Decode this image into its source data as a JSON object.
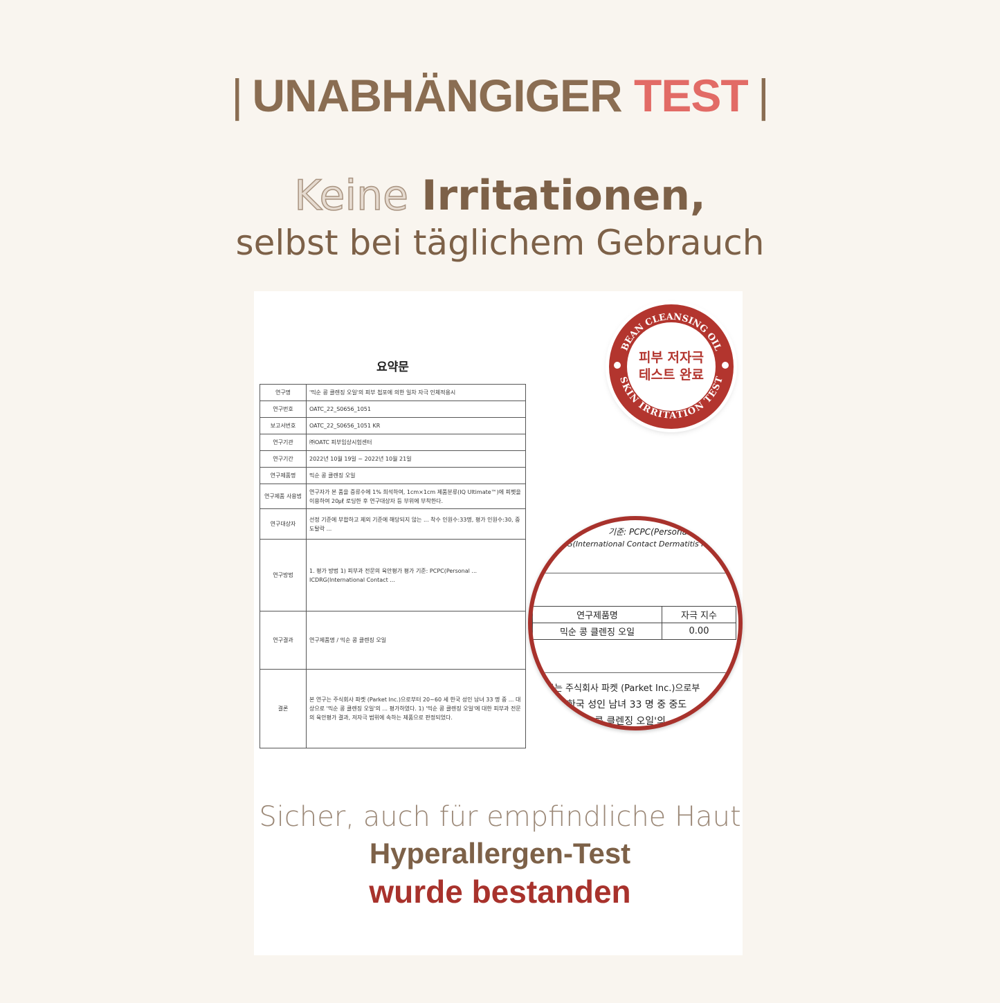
{
  "header": {
    "title_main": "UNABHÄNGIGER",
    "title_accent": "TEST",
    "divider": "|"
  },
  "headline": {
    "outline": "Keine",
    "bold": "Irritationen,",
    "sub": "selbst bei täglichem Gebrauch"
  },
  "document": {
    "title": "요약문",
    "rows": [
      {
        "k": "연구명",
        "v": "'믹순 콩 클렌징 오일'의 피부 첩포에 의한 일차 자극 인체적용시"
      },
      {
        "k": "연구번호",
        "v": "OATC_22_S0656_1051"
      },
      {
        "k": "보고서번호",
        "v": "OATC_22_S0656_1051 KR"
      },
      {
        "k": "연구기관",
        "v": "㈜OATC 피부임상시험센터"
      },
      {
        "k": "연구기간",
        "v": "2022년 10월 19일 ~ 2022년 10월 21일"
      },
      {
        "k": "연구제품명",
        "v": "믹순 콩 클렌징 오일"
      },
      {
        "k": "연구제품 사용법",
        "v": "연구자가 본 품을 증류수에 1% 희석하여, 1cm×1cm 제품분류(IQ Ultimate™)에 피펫을 이용하여 20㎕ 로딩한 후 연구대상자 등 부위에 부착한다."
      },
      {
        "k": "연구대상자",
        "v": "선정 기준에 부합하고 제외 기준에 해당되지 않는 ... 착수 인원수:33명, 평가 인원수:30, 중도탈락 ..."
      },
      {
        "k": "연구방법",
        "v": "1. 평가 방법 1) 피부과 전문의 육안평가 평가 기준: PCPC(Personal ... ICDRG(International Contact ..."
      },
      {
        "k": "연구결과",
        "v": "연구제품명 / 믹순 콩 클렌징 오일"
      },
      {
        "k": "결론",
        "v": "본 연구는 주식회사 파켓 (Parket Inc.)으로부터 20~60 세 한국 성인 남녀 33 명 중 ... 대상으로 '믹순 콩 클렌징 오일'의 ... 평가하였다. 1) '믹순 콩 클렌징 오일'에 대한 피부과 전문의 육안평가 결과, 저자극 범위에 속하는 제품으로 판정되었다."
      }
    ]
  },
  "stamp": {
    "top_arc": "BEAN CLEANSING OIL",
    "bottom_arc": "SKIN IRRITATION TEST",
    "line1": "피부 저자극",
    "line2": "테스트 완료",
    "color": "#b3352e"
  },
  "magnifier": {
    "line1": "기준: PCPC(Personal Car",
    "line2": "G(International Contact Dermatitis Re",
    "col_product": "연구제품명",
    "col_index": "자극 지수",
    "product": "믹순 콩 클렌징 오일",
    "index": "0.00",
    "c1": "구는 주식회사 파켓 (Parket Inc.)으로부",
    "c2": "한국 성인 남녀 33 명 중 중도",
    "c3": "콩 클렌징 오일'의"
  },
  "footer": {
    "line1": "Sicher, auch für empfindliche Haut",
    "line2": "Hyperallergen-Test",
    "line3": "wurde bestanden"
  },
  "colors": {
    "background": "#f9f5ef",
    "brown": "#8a6d52",
    "accent": "#e26b66",
    "red": "#a8322c"
  }
}
